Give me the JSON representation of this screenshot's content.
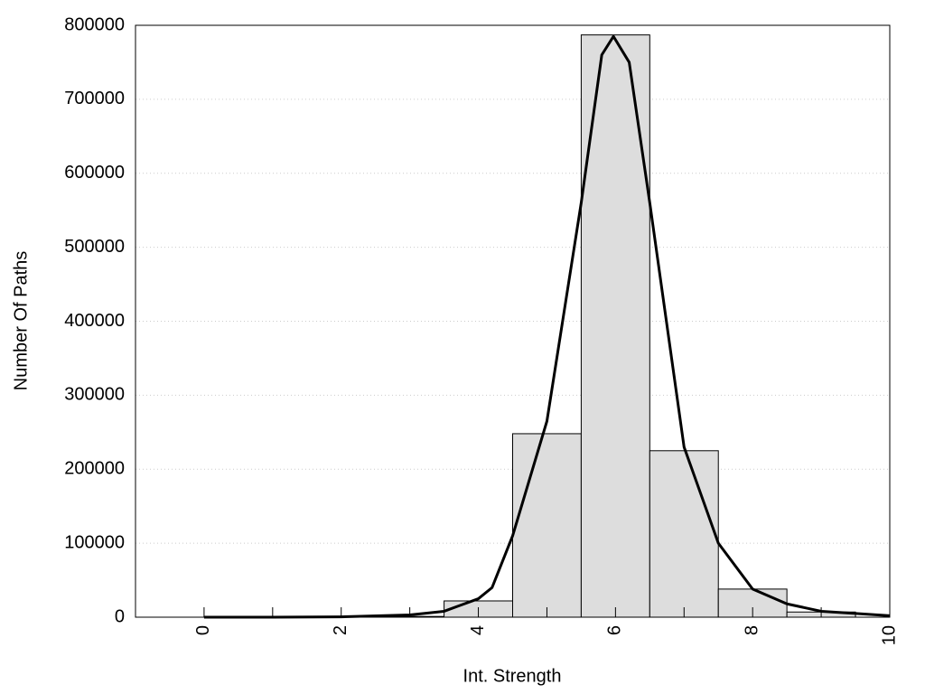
{
  "chart_data": {
    "type": "histogram",
    "xlabel": "Int. Strength",
    "ylabel": "Number Of Paths",
    "bins": [
      -0.5,
      0.5,
      1.5,
      2.5,
      3.5,
      4.5,
      5.5,
      6.5,
      7.5,
      8.5,
      9.5
    ],
    "counts": [
      0,
      0,
      0,
      1000,
      22000,
      248000,
      787000,
      225000,
      38000,
      7000
    ],
    "color": "#dddddd",
    "overlay": {
      "type": "line",
      "color": "#000000",
      "x": [
        0,
        1,
        2,
        3,
        3.5,
        4,
        4.2,
        4.5,
        5,
        5.5,
        5.8,
        5.97,
        6.2,
        6.5,
        7,
        7.5,
        8,
        8.5,
        9,
        9.5,
        10
      ],
      "values": [
        0,
        0,
        500,
        3000,
        8000,
        25000,
        40000,
        110000,
        265000,
        560000,
        760000,
        785000,
        750000,
        560000,
        230000,
        100000,
        38000,
        18000,
        8000,
        5000,
        2000
      ]
    },
    "xlim": [
      -1,
      10
    ],
    "xticks": [
      0,
      2,
      4,
      6,
      8,
      10
    ],
    "xminorticks": [
      0,
      1,
      2,
      3,
      4,
      5,
      6,
      7,
      8,
      9,
      10
    ],
    "ylim": [
      0,
      800000
    ],
    "yticks": [
      0,
      100000,
      200000,
      300000,
      400000,
      500000,
      600000,
      700000,
      800000
    ],
    "grid": true
  }
}
